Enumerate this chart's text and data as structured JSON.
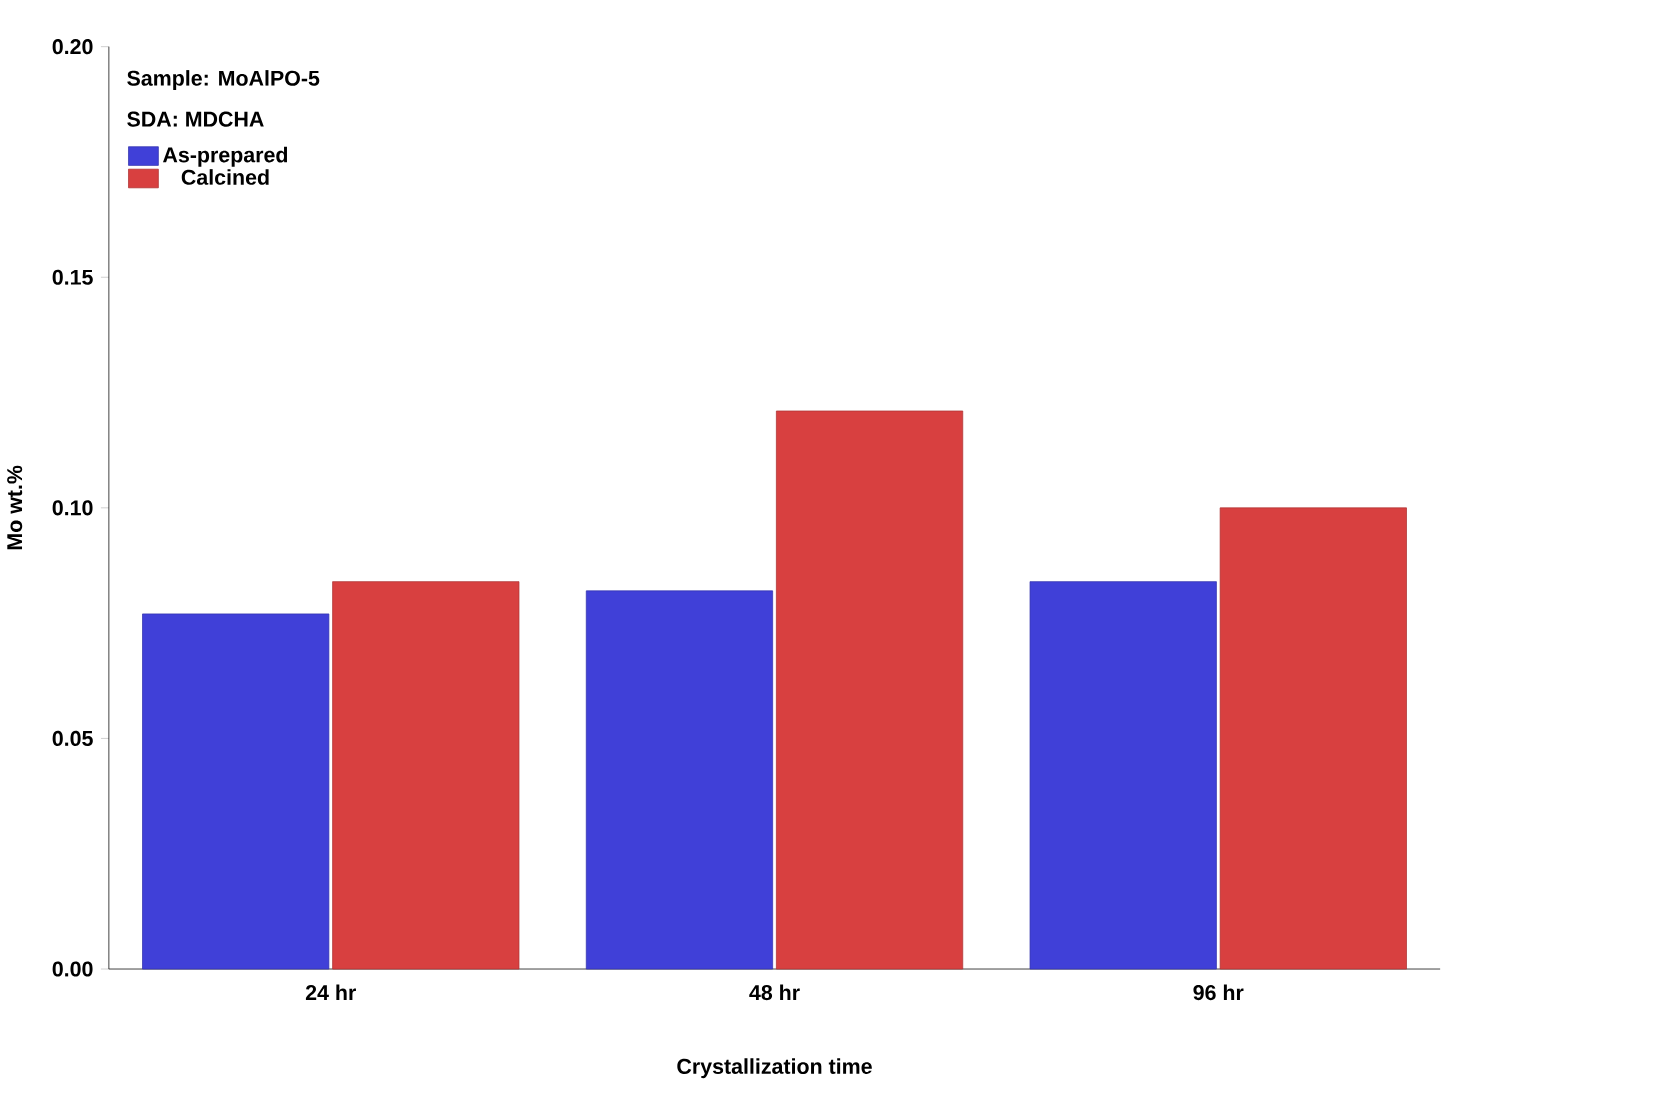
{
  "chart_data": {
    "type": "bar",
    "xlabel": "Crystallization time",
    "ylabel": "Mo wt.%",
    "annotations": [
      "Sample: MoAlPO-5",
      "SDA: MDCHA"
    ],
    "categories": [
      "24 hr",
      "48 hr",
      "96 hr"
    ],
    "series": [
      {
        "name": "As-prepared",
        "color": "#4040d8",
        "values": [
          0.077,
          0.082,
          0.084
        ]
      },
      {
        "name": "Calcined",
        "color": "#d84040",
        "values": [
          0.084,
          0.121,
          0.1
        ]
      }
    ],
    "ylim": [
      0,
      0.2
    ],
    "yticks": [
      {
        "value": 0,
        "label": "0.00"
      },
      {
        "value": 0.05,
        "label": "0.05"
      },
      {
        "value": 0.1,
        "label": "0.10"
      },
      {
        "value": 0.15,
        "label": "0.15"
      },
      {
        "value": 0.2,
        "label": "0.20"
      }
    ],
    "legend": "top left",
    "grid": false
  }
}
